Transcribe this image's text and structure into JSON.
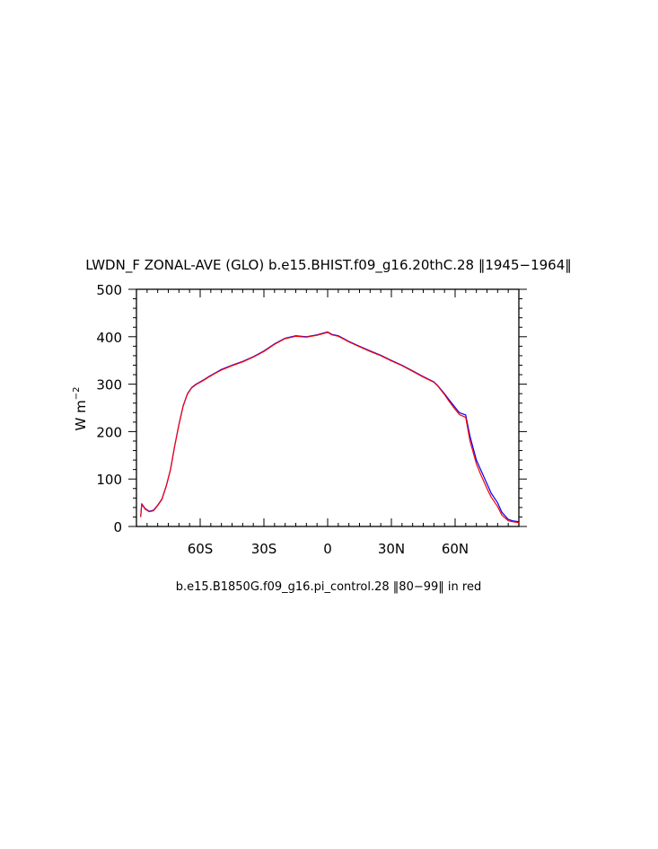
{
  "title": "LWDN_F ZONAL-AVE (GLO) b.e15.BHIST.f09_g16.20thC.28 ‖1945−1964‖",
  "subtitle": "b.e15.B1850G.f09_g16.pi_control.28 ‖80−99‖ in red",
  "chart_data": {
    "type": "line",
    "title": "LWDN_F ZONAL-AVE (GLO) b.e15.BHIST.f09_g16.20thC.28 ‖1945−1964‖",
    "xlabel": "",
    "ylabel": "W m",
    "ylabel_exponent": "−2",
    "xlim": [
      -90,
      90
    ],
    "ylim": [
      0,
      500
    ],
    "x_ticks": [
      -60,
      -30,
      0,
      30,
      60
    ],
    "x_tick_labels": [
      "60S",
      "30S",
      "0",
      "30N",
      "60N"
    ],
    "y_ticks": [
      0,
      100,
      200,
      300,
      400,
      500
    ],
    "y_tick_labels": [
      "0",
      "100",
      "200",
      "300",
      "400",
      "500"
    ],
    "grid": false,
    "series": [
      {
        "color": "#0000ff",
        "x": [
          -88,
          -87.5,
          -86,
          -84,
          -82,
          -80,
          -78,
          -76,
          -74,
          -72,
          -70,
          -68,
          -66,
          -64,
          -62,
          -60,
          -58,
          -56,
          -54,
          -52,
          -50,
          -45,
          -40,
          -35,
          -30,
          -25,
          -20,
          -15,
          -10,
          -5,
          0,
          2,
          5,
          8,
          10,
          15,
          20,
          25,
          30,
          35,
          40,
          45,
          50,
          52,
          55,
          57,
          60,
          62,
          65,
          67,
          70,
          72,
          75,
          77,
          80,
          82,
          85,
          87,
          90
        ],
        "y": [
          20,
          48,
          38,
          32,
          34,
          45,
          58,
          85,
          120,
          170,
          215,
          255,
          280,
          293,
          300,
          305,
          310,
          316,
          321,
          326,
          331,
          340,
          348,
          358,
          370,
          385,
          397,
          402,
          400,
          404,
          410,
          405,
          402,
          395,
          390,
          380,
          370,
          361,
          350,
          340,
          328,
          316,
          305,
          296,
          280,
          268,
          251,
          240,
          235,
          190,
          140,
          120,
          90,
          70,
          50,
          30,
          15,
          12,
          10
        ]
      },
      {
        "color": "#ff0000",
        "x": [
          -88,
          -87.5,
          -86,
          -84,
          -82,
          -80,
          -78,
          -76,
          -74,
          -72,
          -70,
          -68,
          -66,
          -64,
          -62,
          -60,
          -58,
          -56,
          -54,
          -52,
          -50,
          -45,
          -40,
          -35,
          -30,
          -25,
          -20,
          -15,
          -10,
          -5,
          0,
          2,
          5,
          8,
          10,
          15,
          20,
          25,
          30,
          35,
          40,
          45,
          50,
          52,
          55,
          57,
          60,
          62,
          65,
          67,
          70,
          72,
          75,
          77,
          80,
          82,
          85,
          87,
          90
        ],
        "y": [
          20,
          47,
          37,
          31,
          33,
          44,
          57,
          84,
          119,
          169,
          214,
          254,
          279,
          292,
          299,
          304,
          309,
          315,
          320,
          325,
          330,
          339,
          347,
          357,
          369,
          384,
          396,
          401,
          399,
          403,
          409,
          404,
          401,
          394,
          389,
          379,
          369,
          360,
          349,
          339,
          327,
          315,
          304,
          295,
          278,
          265,
          247,
          236,
          230,
          180,
          132,
          110,
          80,
          62,
          42,
          24,
          12,
          10,
          8
        ]
      }
    ]
  }
}
